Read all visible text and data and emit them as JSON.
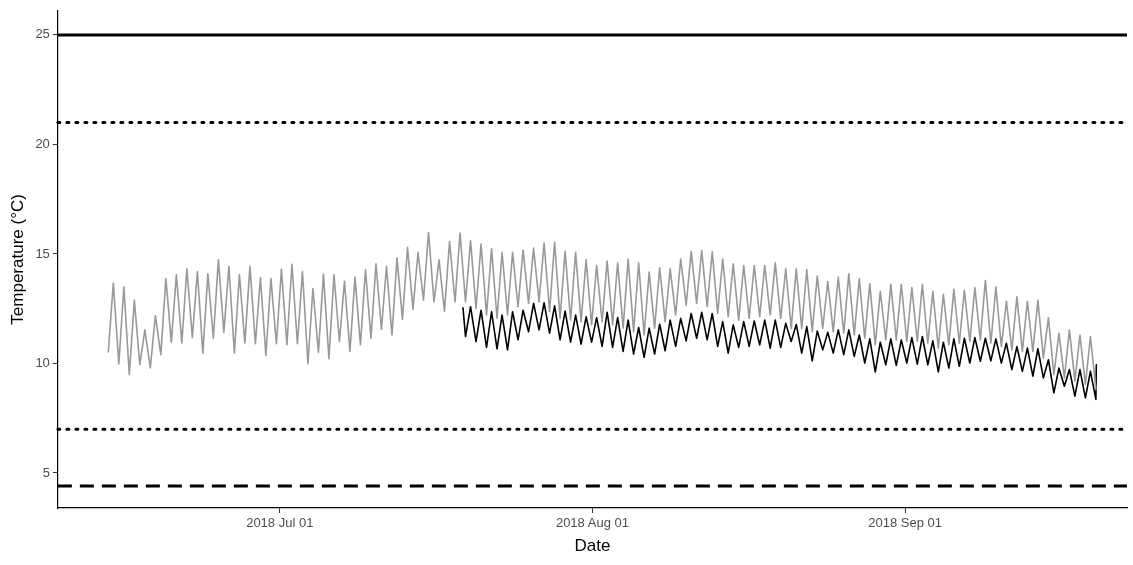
{
  "chart_data": {
    "type": "line",
    "xlabel": "Date",
    "ylabel": "Temperature (°C)",
    "xlim": [
      "2018-06-09",
      "2018-09-23"
    ],
    "xticks": [
      {
        "value": "2018-07-01",
        "label": "2018 Jul 01"
      },
      {
        "value": "2018-08-01",
        "label": "2018 Aug 01"
      },
      {
        "value": "2018-09-01",
        "label": "2018 Sep 01"
      }
    ],
    "ylim": [
      3.4,
      26.1
    ],
    "yticks": [
      5,
      10,
      15,
      20,
      25
    ],
    "grid": false,
    "legend": false,
    "marker": "none",
    "line_style": "solid",
    "ref_lines": [
      {
        "axis": "y",
        "value": 25,
        "color": "#000000",
        "line_style": "solid"
      },
      {
        "axis": "y",
        "value": 21,
        "color": "#000000",
        "line_style": "dotted"
      },
      {
        "axis": "y",
        "value": 7,
        "color": "#000000",
        "line_style": "dotted"
      },
      {
        "axis": "y",
        "value": 4.4,
        "color": "#000000",
        "line_style": "dashed"
      }
    ],
    "series": [
      {
        "color": "#999999",
        "x": [
          "2018-06-14T00:00",
          "2018-06-14T12:00",
          "2018-06-15T01:00",
          "2018-06-15T13:00",
          "2018-06-16T02:00",
          "2018-06-16T14:00",
          "2018-06-17T03:00",
          "2018-06-17T15:00",
          "2018-06-18T04:00",
          "2018-06-18T16:00",
          "2018-06-19T05:00",
          "2018-06-19T17:00",
          "2018-06-20T06:00",
          "2018-06-20T18:00",
          "2018-06-21T07:00",
          "2018-06-21T19:00",
          "2018-06-22T08:00",
          "2018-06-22T20:00",
          "2018-06-23T09:00",
          "2018-06-23T21:00",
          "2018-06-24T10:00",
          "2018-06-24T22:00",
          "2018-06-25T11:00",
          "2018-06-25T23:00",
          "2018-06-26T12:00",
          "2018-06-27T00:00",
          "2018-06-27T13:00",
          "2018-06-28T01:00",
          "2018-06-28T14:00",
          "2018-06-29T02:00",
          "2018-06-29T15:00",
          "2018-06-30T03:00",
          "2018-06-30T16:00",
          "2018-07-01T04:00",
          "2018-07-01T17:00",
          "2018-07-02T05:00",
          "2018-07-02T18:00",
          "2018-07-03T06:00",
          "2018-07-03T19:00",
          "2018-07-04T07:00",
          "2018-07-04T20:00",
          "2018-07-05T08:00",
          "2018-07-05T21:00",
          "2018-07-06T09:00",
          "2018-07-06T22:00",
          "2018-07-07T10:00",
          "2018-07-07T23:00",
          "2018-07-08T11:00",
          "2018-07-09T00:00",
          "2018-07-09T12:00",
          "2018-07-10T01:00",
          "2018-07-10T13:00",
          "2018-07-11T02:00",
          "2018-07-11T14:00",
          "2018-07-12T03:00",
          "2018-07-12T15:00",
          "2018-07-13T04:00",
          "2018-07-13T16:00",
          "2018-07-14T05:00",
          "2018-07-14T17:00",
          "2018-07-15T06:00",
          "2018-07-15T18:00",
          "2018-07-16T07:00",
          "2018-07-16T19:00",
          "2018-07-17T08:00",
          "2018-07-17T20:00",
          "2018-07-18T09:00",
          "2018-07-18T21:00",
          "2018-07-19T10:00",
          "2018-07-19T22:00",
          "2018-07-20T11:00",
          "2018-07-20T23:00",
          "2018-07-21T12:00",
          "2018-07-22T00:00",
          "2018-07-22T13:00",
          "2018-07-23T01:00",
          "2018-07-23T14:00",
          "2018-07-24T02:00",
          "2018-07-24T15:00",
          "2018-07-25T03:00",
          "2018-07-25T16:00",
          "2018-07-26T04:00",
          "2018-07-26T17:00",
          "2018-07-27T05:00",
          "2018-07-27T18:00",
          "2018-07-28T06:00",
          "2018-07-28T19:00",
          "2018-07-29T07:00",
          "2018-07-29T20:00",
          "2018-07-30T08:00",
          "2018-07-30T21:00",
          "2018-07-31T09:00",
          "2018-07-31T22:00",
          "2018-08-01T10:00",
          "2018-08-01T23:00",
          "2018-08-02T11:00",
          "2018-08-03T00:00",
          "2018-08-03T12:00",
          "2018-08-04T01:00",
          "2018-08-04T13:00",
          "2018-08-05T02:00",
          "2018-08-05T14:00",
          "2018-08-06T03:00",
          "2018-08-06T15:00",
          "2018-08-07T04:00",
          "2018-08-07T16:00",
          "2018-08-08T05:00",
          "2018-08-08T17:00",
          "2018-08-09T06:00",
          "2018-08-09T18:00",
          "2018-08-10T07:00",
          "2018-08-10T19:00",
          "2018-08-11T08:00",
          "2018-08-11T20:00",
          "2018-08-12T09:00",
          "2018-08-12T21:00",
          "2018-08-13T10:00",
          "2018-08-13T22:00",
          "2018-08-14T11:00",
          "2018-08-14T23:00",
          "2018-08-15T12:00",
          "2018-08-16T00:00",
          "2018-08-16T13:00",
          "2018-08-17T01:00",
          "2018-08-17T14:00",
          "2018-08-18T02:00",
          "2018-08-18T15:00",
          "2018-08-19T03:00",
          "2018-08-19T16:00",
          "2018-08-20T04:00",
          "2018-08-20T17:00",
          "2018-08-21T05:00",
          "2018-08-21T18:00",
          "2018-08-22T06:00",
          "2018-08-22T19:00",
          "2018-08-23T07:00",
          "2018-08-23T20:00",
          "2018-08-24T08:00",
          "2018-08-24T21:00",
          "2018-08-25T09:00",
          "2018-08-25T22:00",
          "2018-08-26T10:00",
          "2018-08-26T23:00",
          "2018-08-27T11:00",
          "2018-08-28T00:00",
          "2018-08-28T12:00",
          "2018-08-29T01:00",
          "2018-08-29T13:00",
          "2018-08-30T02:00",
          "2018-08-30T14:00",
          "2018-08-31T03:00",
          "2018-08-31T15:00",
          "2018-09-01T04:00",
          "2018-09-01T16:00",
          "2018-09-02T05:00",
          "2018-09-02T17:00",
          "2018-09-03T06:00",
          "2018-09-03T18:00",
          "2018-09-04T07:00",
          "2018-09-04T19:00",
          "2018-09-05T08:00",
          "2018-09-05T20:00",
          "2018-09-06T09:00",
          "2018-09-06T21:00",
          "2018-09-07T10:00",
          "2018-09-07T22:00",
          "2018-09-08T11:00",
          "2018-09-08T23:00",
          "2018-09-09T12:00",
          "2018-09-10T00:00",
          "2018-09-10T13:00",
          "2018-09-11T01:00",
          "2018-09-11T14:00",
          "2018-09-12T02:00",
          "2018-09-12T15:00",
          "2018-09-13T03:00",
          "2018-09-13T16:00",
          "2018-09-14T04:00",
          "2018-09-14T17:00",
          "2018-09-15T05:00",
          "2018-09-15T18:00",
          "2018-09-16T06:00",
          "2018-09-16T19:00",
          "2018-09-17T07:00",
          "2018-09-17T20:00",
          "2018-09-18T08:00",
          "2018-09-18T21:00",
          "2018-09-19T09:00",
          "2018-09-19T22:00"
        ],
        "values": [
          10.52,
          13.67,
          9.98,
          13.49,
          9.49,
          12.89,
          9.95,
          11.53,
          9.8,
          12.18,
          10.4,
          13.87,
          10.97,
          14.05,
          10.94,
          14.32,
          11.18,
          14.2,
          10.47,
          14.09,
          11.15,
          14.73,
          11.42,
          14.44,
          10.47,
          14.06,
          10.93,
          14.44,
          10.9,
          13.91,
          10.37,
          13.87,
          10.9,
          14.3,
          10.85,
          14.53,
          10.9,
          14.2,
          9.99,
          13.42,
          10.5,
          14.08,
          10.22,
          14.05,
          11.0,
          13.75,
          10.55,
          13.94,
          10.85,
          14.29,
          11.15,
          14.55,
          11.55,
          14.44,
          11.3,
          14.82,
          12.01,
          15.3,
          12.47,
          15.07,
          12.89,
          15.98,
          12.81,
          14.73,
          12.39,
          15.57,
          12.81,
          15.95,
          12.81,
          15.6,
          12.51,
          15.45,
          12.21,
          15.23,
          12.06,
          15.07,
          12.21,
          15.07,
          12.59,
          15.18,
          12.74,
          15.27,
          12.81,
          15.5,
          12.36,
          15.53,
          12.06,
          15.12,
          11.98,
          15.07,
          11.91,
          14.74,
          11.76,
          14.47,
          11.91,
          14.67,
          11.76,
          14.59,
          11.61,
          14.77,
          11.45,
          14.59,
          11.3,
          14.17,
          11.61,
          14.37,
          11.91,
          14.32,
          12.21,
          14.77,
          12.66,
          15.12,
          12.74,
          15.15,
          12.59,
          15.1,
          12.28,
          14.77,
          12.13,
          14.55,
          11.98,
          14.47,
          12.06,
          14.47,
          12.13,
          14.47,
          12.21,
          14.59,
          12.06,
          14.32,
          11.6,
          14.32,
          11.6,
          14.29,
          11.45,
          13.99,
          11.6,
          13.74,
          11.45,
          13.94,
          11.38,
          14.09,
          11.3,
          13.87,
          11.15,
          13.64,
          10.85,
          13.29,
          11.07,
          13.61,
          11.07,
          13.61,
          11.0,
          13.46,
          11.0,
          13.61,
          10.92,
          13.29,
          10.7,
          13.16,
          10.85,
          13.38,
          10.92,
          13.34,
          11.0,
          13.46,
          11.07,
          13.79,
          10.92,
          13.49,
          10.77,
          12.84,
          10.62,
          13.04,
          10.55,
          12.84,
          10.55,
          12.88,
          10.25,
          12.09,
          9.49,
          11.38,
          9.34,
          11.53,
          9.19,
          11.3,
          9.04,
          11.23,
          8.81
        ]
      },
      {
        "color": "#000000",
        "x": [
          "2018-07-19T04:00",
          "2018-07-19T10:00",
          "2018-07-19T22:00",
          "2018-07-20T11:00",
          "2018-07-20T23:00",
          "2018-07-21T12:00",
          "2018-07-22T00:00",
          "2018-07-22T13:00",
          "2018-07-23T01:00",
          "2018-07-23T14:00",
          "2018-07-24T02:00",
          "2018-07-24T15:00",
          "2018-07-25T03:00",
          "2018-07-25T16:00",
          "2018-07-26T04:00",
          "2018-07-26T17:00",
          "2018-07-27T05:00",
          "2018-07-27T18:00",
          "2018-07-28T06:00",
          "2018-07-28T19:00",
          "2018-07-29T07:00",
          "2018-07-29T20:00",
          "2018-07-30T08:00",
          "2018-07-30T21:00",
          "2018-07-31T09:00",
          "2018-07-31T22:00",
          "2018-08-01T10:00",
          "2018-08-01T23:00",
          "2018-08-02T11:00",
          "2018-08-03T00:00",
          "2018-08-03T12:00",
          "2018-08-04T01:00",
          "2018-08-04T13:00",
          "2018-08-05T02:00",
          "2018-08-05T14:00",
          "2018-08-06T03:00",
          "2018-08-06T15:00",
          "2018-08-07T04:00",
          "2018-08-07T16:00",
          "2018-08-08T05:00",
          "2018-08-08T17:00",
          "2018-08-09T06:00",
          "2018-08-09T18:00",
          "2018-08-10T07:00",
          "2018-08-10T19:00",
          "2018-08-11T08:00",
          "2018-08-11T20:00",
          "2018-08-12T09:00",
          "2018-08-12T21:00",
          "2018-08-13T10:00",
          "2018-08-13T22:00",
          "2018-08-14T11:00",
          "2018-08-14T23:00",
          "2018-08-15T12:00",
          "2018-08-16T00:00",
          "2018-08-16T13:00",
          "2018-08-17T01:00",
          "2018-08-17T14:00",
          "2018-08-18T02:00",
          "2018-08-18T15:00",
          "2018-08-19T03:00",
          "2018-08-19T16:00",
          "2018-08-20T04:00",
          "2018-08-20T17:00",
          "2018-08-21T05:00",
          "2018-08-21T18:00",
          "2018-08-22T06:00",
          "2018-08-22T19:00",
          "2018-08-23T07:00",
          "2018-08-23T20:00",
          "2018-08-24T08:00",
          "2018-08-24T21:00",
          "2018-08-25T09:00",
          "2018-08-25T22:00",
          "2018-08-26T10:00",
          "2018-08-26T23:00",
          "2018-08-27T11:00",
          "2018-08-28T00:00",
          "2018-08-28T12:00",
          "2018-08-29T01:00",
          "2018-08-29T13:00",
          "2018-08-30T02:00",
          "2018-08-30T14:00",
          "2018-08-31T03:00",
          "2018-08-31T15:00",
          "2018-09-01T04:00",
          "2018-09-01T16:00",
          "2018-09-02T05:00",
          "2018-09-02T17:00",
          "2018-09-03T06:00",
          "2018-09-03T18:00",
          "2018-09-04T07:00",
          "2018-09-04T19:00",
          "2018-09-05T08:00",
          "2018-09-05T20:00",
          "2018-09-06T09:00",
          "2018-09-06T21:00",
          "2018-09-07T10:00",
          "2018-09-07T22:00",
          "2018-09-08T11:00",
          "2018-09-08T23:00",
          "2018-09-09T12:00",
          "2018-09-10T00:00",
          "2018-09-10T13:00",
          "2018-09-11T01:00",
          "2018-09-11T14:00",
          "2018-09-12T02:00",
          "2018-09-12T15:00",
          "2018-09-13T03:00",
          "2018-09-13T16:00",
          "2018-09-14T04:00",
          "2018-09-14T17:00",
          "2018-09-15T05:00",
          "2018-09-15T18:00",
          "2018-09-16T06:00",
          "2018-09-16T19:00",
          "2018-09-17T07:00",
          "2018-09-17T20:00",
          "2018-09-18T08:00",
          "2018-09-18T21:00",
          "2018-09-19T09:00",
          "2018-09-19T22:00",
          "2018-09-19T23:00"
        ],
        "values": [
          12.54,
          11.23,
          12.59,
          11.0,
          12.43,
          10.73,
          12.36,
          10.67,
          12.21,
          10.62,
          12.36,
          11.08,
          12.43,
          11.45,
          12.74,
          11.53,
          12.77,
          11.38,
          12.63,
          11.08,
          12.39,
          10.97,
          12.21,
          10.88,
          12.13,
          10.97,
          12.09,
          10.78,
          12.33,
          10.73,
          12.09,
          10.55,
          11.98,
          10.43,
          11.64,
          10.28,
          11.61,
          10.43,
          11.79,
          10.58,
          11.98,
          10.78,
          12.06,
          11.03,
          12.28,
          11.15,
          12.33,
          11.08,
          12.28,
          10.78,
          11.91,
          10.47,
          11.76,
          10.73,
          11.91,
          10.78,
          11.94,
          10.85,
          11.98,
          10.7,
          11.98,
          10.73,
          11.83,
          11.0,
          11.78,
          10.47,
          11.68,
          10.12,
          11.48,
          10.62,
          11.42,
          10.47,
          11.53,
          10.4,
          11.53,
          10.32,
          11.3,
          10.02,
          11.12,
          9.61,
          10.97,
          9.94,
          11.12,
          9.91,
          11.07,
          10.02,
          11.18,
          9.97,
          11.23,
          9.94,
          11.03,
          9.61,
          10.97,
          9.79,
          11.12,
          9.87,
          11.15,
          10.02,
          11.18,
          10.1,
          11.15,
          10.12,
          11.12,
          10.02,
          10.92,
          9.72,
          10.77,
          9.64,
          10.7,
          9.42,
          10.67,
          9.34,
          10.17,
          8.66,
          9.79,
          8.96,
          9.72,
          8.51,
          9.72,
          8.43,
          9.64,
          8.36,
          9.94
        ]
      }
    ]
  }
}
